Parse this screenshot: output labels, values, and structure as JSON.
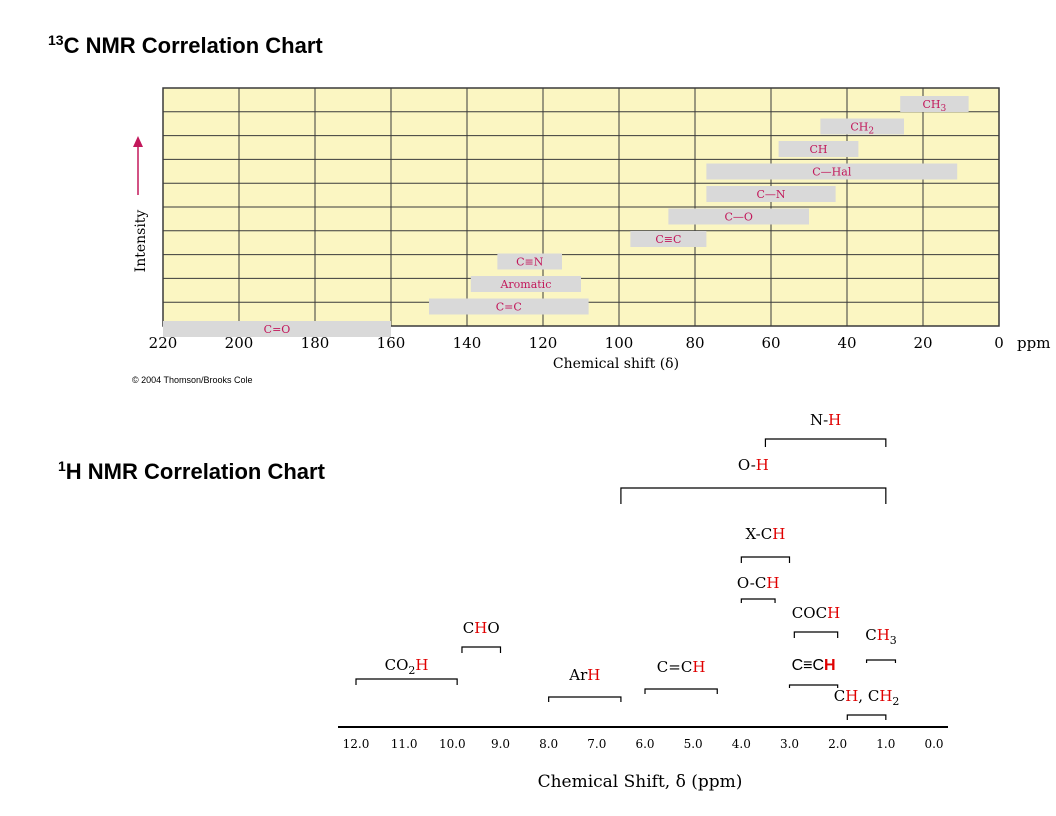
{
  "page": {
    "c13_title_sup": "13",
    "c13_title_rest": "C NMR Correlation Chart",
    "h1_title_sup": "1",
    "h1_title_rest": "H NMR Correlation Chart",
    "copyright": "© 2004 Thomson/Brooks Cole"
  },
  "colors": {
    "grid_bg": "#fbf6c2",
    "grid_line": "#3a3a3a",
    "band_fill": "#d9d9d9",
    "c13_label": "#c2185b",
    "highlight_h": "#e00000",
    "bracket": "#000000"
  },
  "chart_data": [
    {
      "type": "bar",
      "title": "13C NMR Correlation Chart",
      "xlabel": "Chemical shift (δ)",
      "ylabel": "Intensity",
      "x_unit": "ppm",
      "xlim": [
        220,
        0
      ],
      "x_reversed": true,
      "grid": true,
      "x_ticks": [
        "220",
        "200",
        "180",
        "160",
        "140",
        "120",
        "100",
        "80",
        "60",
        "40",
        "20",
        "0"
      ],
      "ranges": [
        {
          "label": "CH3",
          "from": 26,
          "to": 8
        },
        {
          "label": "CH2",
          "from": 47,
          "to": 25
        },
        {
          "label": "CH",
          "from": 58,
          "to": 37
        },
        {
          "label": "C—Hal",
          "from": 77,
          "to": 11
        },
        {
          "label": "C—N",
          "from": 77,
          "to": 43
        },
        {
          "label": "C—O",
          "from": 87,
          "to": 50
        },
        {
          "label": "C≡C",
          "from": 97,
          "to": 77
        },
        {
          "label": "C≡N",
          "from": 132,
          "to": 115
        },
        {
          "label": "Aromatic",
          "from": 139,
          "to": 110
        },
        {
          "label": "C=C",
          "from": 150,
          "to": 108
        },
        {
          "label": "C=O",
          "from": 220,
          "to": 160
        }
      ]
    },
    {
      "type": "bar",
      "title": "1H NMR Correlation Chart",
      "xlabel": "Chemical Shift, δ (ppm)",
      "xlim": [
        12.0,
        0.0
      ],
      "x_reversed": true,
      "x_ticks": [
        "12.0",
        "11.0",
        "10.0",
        "9.0",
        "8.0",
        "7.0",
        "6.0",
        "5.0",
        "4.0",
        "3.0",
        "2.0",
        "1.0",
        "0.0"
      ],
      "ranges": [
        {
          "label": "N-H",
          "from": 3.5,
          "to": 1.0
        },
        {
          "label": "O-H",
          "from": 6.5,
          "to": 1.0
        },
        {
          "label": "X-CH",
          "from": 4.0,
          "to": 3.0
        },
        {
          "label": "O-CH",
          "from": 4.0,
          "to": 3.3
        },
        {
          "label": "COCH",
          "from": 2.9,
          "to": 2.0
        },
        {
          "label": "CHO",
          "from": 9.8,
          "to": 9.0
        },
        {
          "label": "CH3",
          "from": 1.4,
          "to": 0.8
        },
        {
          "label": "C≡CH",
          "from": 3.0,
          "to": 2.0
        },
        {
          "label": "CO2H",
          "from": 12.0,
          "to": 9.9
        },
        {
          "label": "ArH",
          "from": 8.0,
          "to": 6.5
        },
        {
          "label": "C=CH",
          "from": 6.0,
          "to": 4.5
        },
        {
          "label": "CH, CH2",
          "from": 1.8,
          "to": 1.0
        }
      ]
    }
  ]
}
